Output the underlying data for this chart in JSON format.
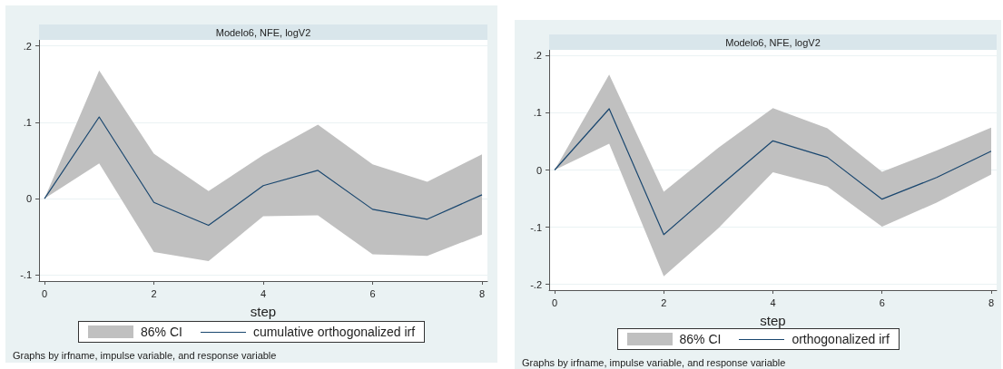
{
  "chart_data": [
    {
      "type": "line",
      "title": "Modelo6, NFE, logV2",
      "xlabel": "step",
      "x": [
        0,
        1,
        2,
        3,
        4,
        5,
        6,
        7,
        8
      ],
      "xlim": [
        -0.1,
        8.1
      ],
      "xticks": [
        0,
        2,
        4,
        6,
        8
      ],
      "ylim": [
        -0.108,
        0.208
      ],
      "yticks": [
        {
          "value": -0.1,
          "label": "-.1"
        },
        0,
        {
          "value": 0.1,
          "label": ".1"
        },
        {
          "value": 0.2,
          "label": ".2"
        }
      ],
      "grid": "y",
      "legend": "bottom",
      "marker": "none",
      "line_style": "solid",
      "series": [
        {
          "type": "line",
          "name": "cumulative orthogonalized irf",
          "color": "#1a476f",
          "values": [
            0,
            0.107,
            -0.005,
            -0.035,
            0.017,
            0.037,
            -0.014,
            -0.027,
            0.005
          ],
          "lower": [
            0,
            0.046,
            -0.07,
            -0.082,
            -0.023,
            -0.022,
            -0.073,
            -0.075,
            -0.047
          ],
          "upper": [
            0,
            0.168,
            0.059,
            0.01,
            0.057,
            0.097,
            0.045,
            0.022,
            0.058
          ]
        }
      ],
      "annotations": [
        "86% CI",
        "Graphs by irfname, impulse variable, and response variable"
      ]
    },
    {
      "type": "line",
      "title": "Modelo6, NFE, logV2",
      "xlabel": "step",
      "x": [
        0,
        1,
        2,
        3,
        4,
        5,
        6,
        7,
        8
      ],
      "xlim": [
        -0.1,
        8.1
      ],
      "xticks": [
        0,
        2,
        4,
        6,
        8
      ],
      "ylim": [
        -0.21,
        0.21
      ],
      "yticks": [
        {
          "value": -0.2,
          "label": "-.2"
        },
        {
          "value": -0.1,
          "label": "-.1"
        },
        0,
        {
          "value": 0.1,
          "label": ".1"
        },
        {
          "value": 0.2,
          "label": ".2"
        }
      ],
      "grid": "y",
      "legend": "bottom",
      "marker": "none",
      "line_style": "solid",
      "series": [
        {
          "type": "line",
          "name": "orthogonalized irf",
          "color": "#1a476f",
          "values": [
            0,
            0.107,
            -0.113,
            -0.03,
            0.051,
            0.022,
            -0.051,
            -0.013,
            0.033
          ],
          "lower": [
            0,
            0.046,
            -0.186,
            -0.102,
            -0.004,
            -0.029,
            -0.099,
            -0.057,
            -0.008
          ],
          "upper": [
            0,
            0.167,
            -0.038,
            0.039,
            0.108,
            0.073,
            -0.003,
            0.034,
            0.074
          ]
        }
      ],
      "annotations": [
        "86% CI",
        "Graphs by irfname, impulse variable, and response variable"
      ]
    }
  ]
}
